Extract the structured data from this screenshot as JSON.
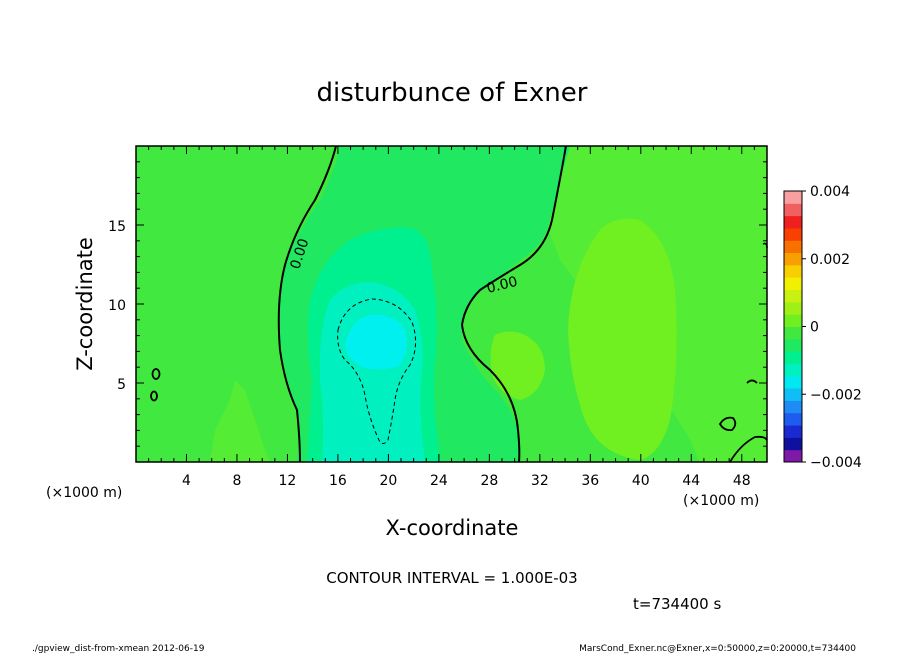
{
  "chart_data": {
    "type": "heatmap",
    "title": "disturbunce of Exner",
    "xlabel": "X-coordinate",
    "ylabel": "Z-coordinate",
    "x_unit": "(×1000 m)",
    "z_unit": "(×1000 m)",
    "xlim": [
      0,
      50
    ],
    "ylim": [
      0,
      20
    ],
    "x_ticks": [
      "4",
      "8",
      "12",
      "16",
      "20",
      "24",
      "28",
      "32",
      "36",
      "40",
      "44",
      "48"
    ],
    "y_ticks": [
      "5",
      "10",
      "15"
    ],
    "contour_labels": [
      "0.00",
      "0.00"
    ],
    "colorbar": {
      "min": -0.004,
      "max": 0.004,
      "tick_labels": [
        "0.004",
        "0.002",
        "0",
        "−0.002",
        "−0.004"
      ],
      "colors": [
        "#7f19a8",
        "#1010a0",
        "#1a2ad0",
        "#1e5cf0",
        "#1f8cf5",
        "#10bdf5",
        "#00e8f0",
        "#00f0c0",
        "#00f090",
        "#20e860",
        "#40e840",
        "#70f020",
        "#a0f018",
        "#c8f010",
        "#f0f000",
        "#f8d000",
        "#f8a000",
        "#f87000",
        "#f84000",
        "#f02020",
        "#f06060",
        "#f8a0a0"
      ]
    },
    "contour_interval_text": "CONTOUR INTERVAL = 1.000E-03",
    "time_text": "t=734400  s"
  },
  "footer": {
    "left": "./gpview_dist-from-xmean  2012-06-19",
    "right": "MarsCond_Exner.nc@Exner,x=0:50000,z=0:20000,t=734400"
  }
}
